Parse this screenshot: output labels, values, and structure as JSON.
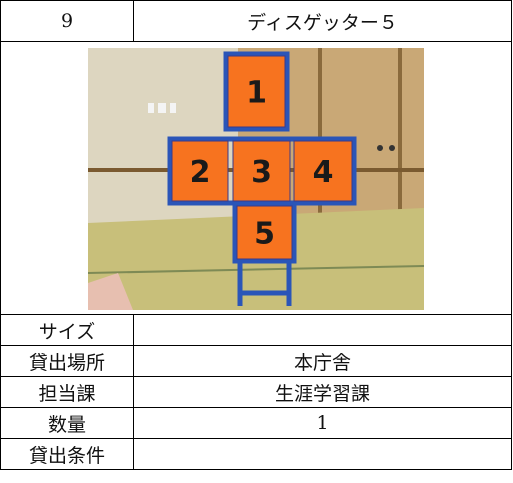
{
  "table": {
    "header": [
      "9",
      "ディスゲッター５"
    ],
    "photo": {
      "panels": [
        "1",
        "2",
        "3",
        "4",
        "5"
      ]
    },
    "rows": [
      [
        "サイズ"
      ],
      [
        "貸出場所",
        "本庁舎"
      ],
      [
        "担当課",
        "生涯学習課"
      ],
      [
        "数量",
        "1"
      ],
      [
        "貸出条件"
      ]
    ]
  }
}
